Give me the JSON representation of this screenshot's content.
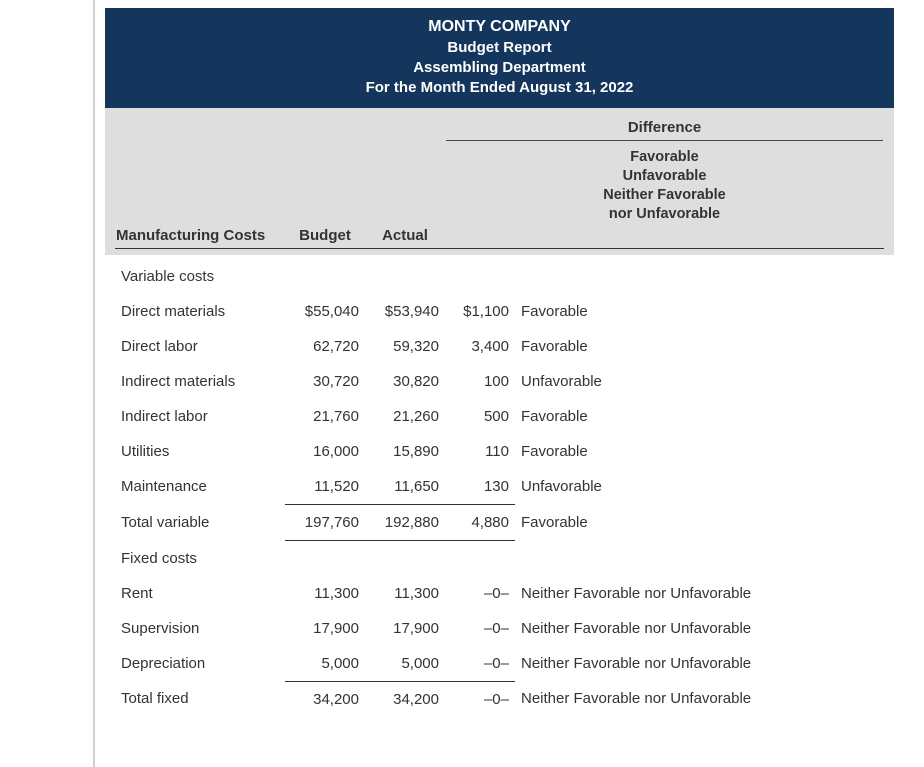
{
  "header": {
    "company": "MONTY COMPANY",
    "title": "Budget Report",
    "department": "Assembling Department",
    "period": "For the Month Ended August 31, 2022"
  },
  "columns": {
    "main_label": "Manufacturing Costs",
    "budget": "Budget",
    "actual": "Actual",
    "difference_header": "Difference",
    "difference_sub": "Favorable\nUnfavorable\nNeither Favorable\nnor Unfavorable"
  },
  "sections": {
    "variable_header": "Variable costs",
    "fixed_header": "Fixed costs"
  },
  "rows": {
    "direct_materials": {
      "label": "Direct materials",
      "budget": "$55,040",
      "actual": "$53,940",
      "diff": "$1,100",
      "status": "Favorable"
    },
    "direct_labor": {
      "label": "Direct labor",
      "budget": "62,720",
      "actual": "59,320",
      "diff": "3,400",
      "status": "Favorable"
    },
    "indirect_materials": {
      "label": "Indirect materials",
      "budget": "30,720",
      "actual": "30,820",
      "diff": "100",
      "status": "Unfavorable"
    },
    "indirect_labor": {
      "label": "Indirect labor",
      "budget": "21,760",
      "actual": "21,260",
      "diff": "500",
      "status": "Favorable"
    },
    "utilities": {
      "label": "Utilities",
      "budget": "16,000",
      "actual": "15,890",
      "diff": "110",
      "status": "Favorable"
    },
    "maintenance": {
      "label": "Maintenance",
      "budget": "11,520",
      "actual": "11,650",
      "diff": "130",
      "status": "Unfavorable"
    },
    "total_variable": {
      "label": "Total variable",
      "budget": "197,760",
      "actual": "192,880",
      "diff": "4,880",
      "status": "Favorable"
    },
    "rent": {
      "label": "Rent",
      "budget": "11,300",
      "actual": "11,300",
      "diff": "–0–",
      "status": "Neither Favorable nor Unfavorable"
    },
    "supervision": {
      "label": "Supervision",
      "budget": "17,900",
      "actual": "17,900",
      "diff": "–0–",
      "status": "Neither Favorable nor Unfavorable"
    },
    "depreciation": {
      "label": "Depreciation",
      "budget": "5,000",
      "actual": "5,000",
      "diff": "–0–",
      "status": "Neither Favorable nor Unfavorable"
    },
    "total_fixed": {
      "label": "Total fixed",
      "budget": "34,200",
      "actual": "34,200",
      "diff": "–0–",
      "status": "Neither Favorable nor Unfavorable"
    }
  },
  "colors": {
    "header_bg": "#14365c",
    "colhead_bg": "#dedede",
    "rule": "#333333",
    "text": "#333333"
  }
}
